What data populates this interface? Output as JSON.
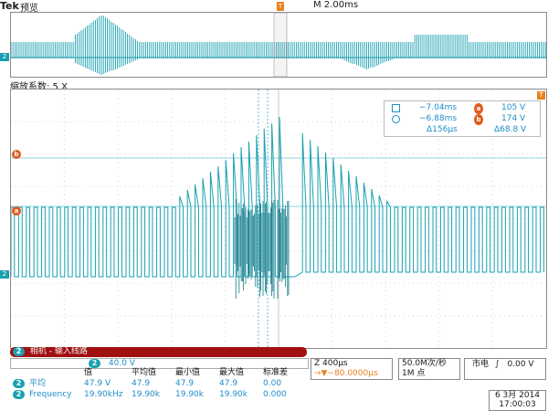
{
  "header": {
    "brand": "Tek",
    "mode": "预览",
    "timebase": "M 2.00ms",
    "trigger_marker": "T"
  },
  "zoom": {
    "label": "缩放系数: 5 X"
  },
  "markers": {
    "a": "a",
    "b": "b",
    "channel": "2"
  },
  "cursors": {
    "row1": {
      "time": "−7.04ms",
      "marker": "a",
      "volt": "105 V"
    },
    "row2": {
      "time": "−6.88ms",
      "marker": "b",
      "volt": "174 V"
    },
    "row3": {
      "dtime": "Δ156μs",
      "dvolt": "Δ68.8 V"
    }
  },
  "banner": {
    "channel": "2",
    "text": "相机 - 输入线路"
  },
  "channel_scale": {
    "channel": "2",
    "value": "40.0 V"
  },
  "measurements": {
    "headers": [
      "值",
      "平均值",
      "最小值",
      "最大值",
      "标准差"
    ],
    "rows": [
      {
        "channel": "2",
        "name": "平均",
        "values": [
          "47.9 V",
          "47.9",
          "47.9",
          "47.9",
          "0.00"
        ]
      },
      {
        "channel": "2",
        "name": "Frequency",
        "values": [
          "19.90kHz",
          "19.90k",
          "19.90k",
          "19.90k",
          "0.000"
        ]
      }
    ]
  },
  "zoom_info": {
    "scale": "Z 400μs",
    "offset": "→▼−80.0000μs"
  },
  "acq": {
    "rate": "50.0M次/秒",
    "points": "1M 点"
  },
  "trigger": {
    "source": "市电",
    "slope": "∫",
    "level": "0.00 V"
  },
  "datetime": {
    "date": "6 3月  2014",
    "time": "17:00:03"
  },
  "colors": {
    "trace": "#1aa0b0",
    "marker": "#e05a1b",
    "banner": "#a11010",
    "cursor_text": "#1e8ec8"
  }
}
